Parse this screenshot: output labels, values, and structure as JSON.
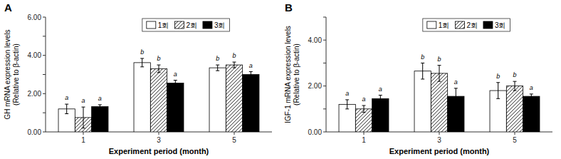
{
  "chart_data": [
    {
      "type": "bar",
      "title": "A",
      "x_label": "Experiment period (month)",
      "y_label": "GH mRNA expression levels\n(Relative to β-actin)",
      "categories": [
        "1",
        "3",
        "5"
      ],
      "series": [
        {
          "name": "1회",
          "color": "white",
          "values": [
            1.2,
            3.62,
            3.35
          ],
          "errors": [
            0.25,
            0.22,
            0.15
          ],
          "letters": [
            "a",
            "b",
            "b"
          ]
        },
        {
          "name": "2회",
          "color": "white",
          "values": [
            0.75,
            3.3,
            3.5
          ],
          "errors": [
            0.55,
            0.2,
            0.15
          ],
          "letters": [
            "a",
            "b",
            "b"
          ]
        },
        {
          "name": "3회",
          "color": "black",
          "values": [
            1.32,
            2.55,
            3.0
          ],
          "errors": [
            0.1,
            0.15,
            0.15
          ],
          "letters": [
            "a",
            "a",
            "a"
          ]
        }
      ],
      "ylim": [
        0,
        6.0
      ],
      "yticks": [
        {
          "value": 0.0,
          "label": "0.00"
        },
        {
          "value": 1.0,
          "label": null
        },
        {
          "value": 2.0,
          "label": "2.00"
        },
        {
          "value": 3.0,
          "label": null
        },
        {
          "value": 4.0,
          "label": "4.00"
        },
        {
          "value": 5.0,
          "label": null
        },
        {
          "value": 6.0,
          "label": "6.00"
        }
      ],
      "legend": "top",
      "grid": false
    },
    {
      "type": "bar",
      "title": "B",
      "x_label": "Experiment period (month)",
      "y_label": "IGF-1 mRNA expression levels\n(Relative to β-actin)",
      "categories": [
        "1",
        "3",
        "5"
      ],
      "series": [
        {
          "name": "1회",
          "color": "white",
          "values": [
            1.2,
            2.65,
            1.8
          ],
          "errors": [
            0.2,
            0.35,
            0.35
          ],
          "letters": [
            "a",
            "b",
            "b"
          ]
        },
        {
          "name": "2회",
          "color": "white",
          "values": [
            1.0,
            2.55,
            2.0
          ],
          "errors": [
            0.15,
            0.35,
            0.2
          ],
          "letters": [
            "a",
            "b",
            "b"
          ]
        },
        {
          "name": "3회",
          "color": "black",
          "values": [
            1.45,
            1.55,
            1.55
          ],
          "errors": [
            0.15,
            0.35,
            0.1
          ],
          "letters": [
            "a",
            "a",
            "a"
          ]
        }
      ],
      "ylim": [
        0,
        5.0
      ],
      "yticks": [
        {
          "value": 0.0,
          "label": "0.00"
        },
        {
          "value": 1.0,
          "label": null
        },
        {
          "value": 2.0,
          "label": "2.00"
        },
        {
          "value": 3.0,
          "label": null
        },
        {
          "value": 4.0,
          "label": "4.00"
        },
        {
          "value": 5.0,
          "label": null
        }
      ],
      "legend": "top",
      "grid": false
    }
  ]
}
